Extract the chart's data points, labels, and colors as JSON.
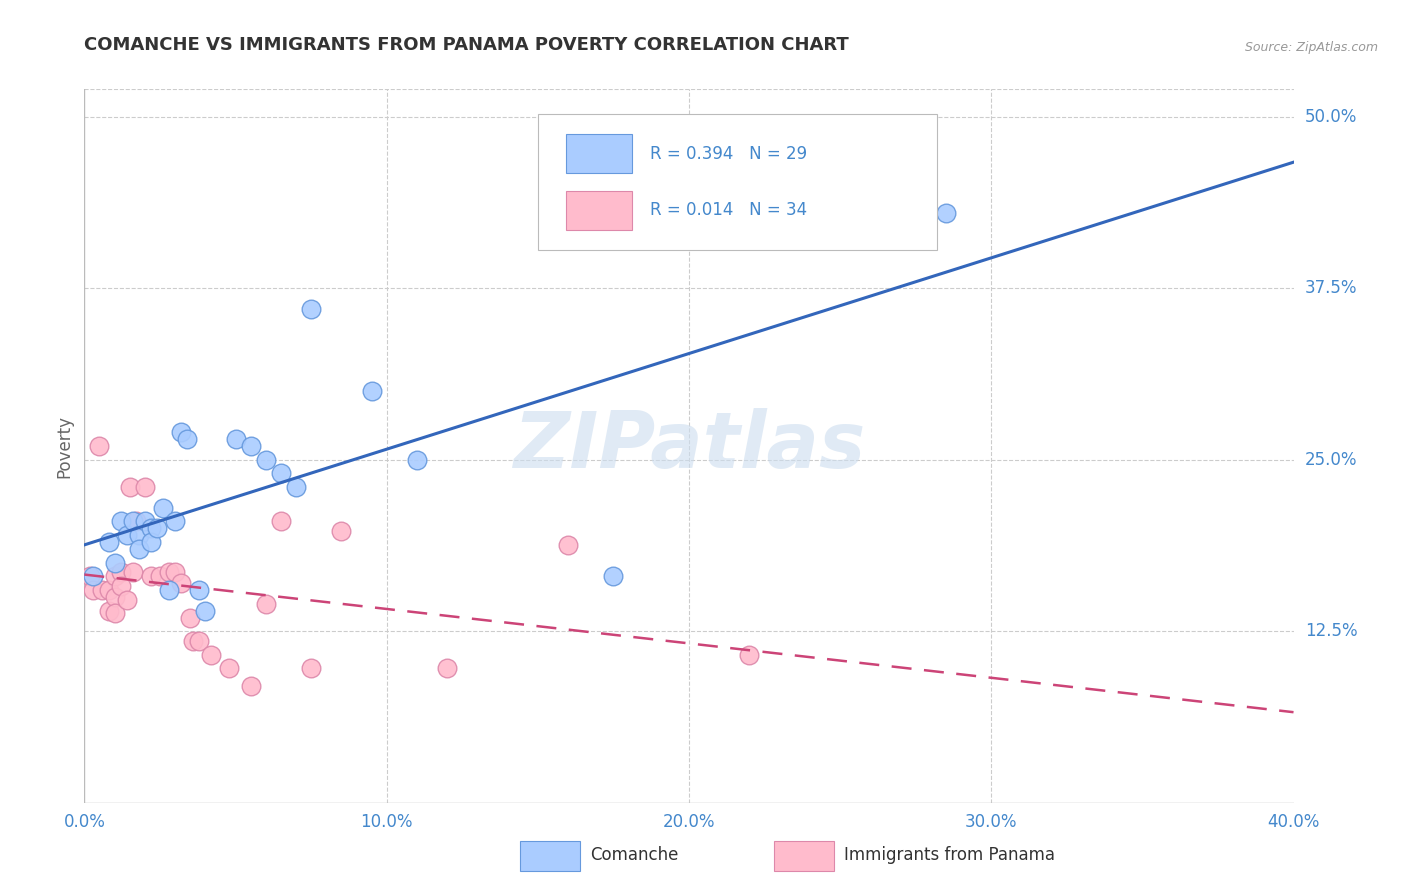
{
  "title": "COMANCHE VS IMMIGRANTS FROM PANAMA POVERTY CORRELATION CHART",
  "source": "Source: ZipAtlas.com",
  "ylabel_label": "Poverty",
  "xlim": [
    0.0,
    0.4
  ],
  "ylim": [
    0.0,
    0.52
  ],
  "xticks": [
    0.0,
    0.1,
    0.2,
    0.3,
    0.4
  ],
  "xtick_labels": [
    "0.0%",
    "10.0%",
    "20.0%",
    "30.0%",
    "40.0%"
  ],
  "yticks": [
    0.125,
    0.25,
    0.375,
    0.5
  ],
  "ytick_labels": [
    "12.5%",
    "25.0%",
    "37.5%",
    "50.0%"
  ],
  "series1_name": "Comanche",
  "series1_color": "#aaccff",
  "series1_edge_color": "#6699dd",
  "series1_R": "0.394",
  "series1_N": "29",
  "series2_name": "Immigrants from Panama",
  "series2_color": "#ffbbcc",
  "series2_edge_color": "#dd88aa",
  "series2_R": "0.014",
  "series2_N": "34",
  "series1_x": [
    0.003,
    0.008,
    0.01,
    0.012,
    0.014,
    0.016,
    0.018,
    0.018,
    0.02,
    0.022,
    0.022,
    0.024,
    0.026,
    0.028,
    0.03,
    0.032,
    0.034,
    0.038,
    0.04,
    0.05,
    0.055,
    0.06,
    0.065,
    0.07,
    0.075,
    0.095,
    0.11,
    0.175,
    0.285
  ],
  "series1_y": [
    0.165,
    0.19,
    0.175,
    0.205,
    0.195,
    0.205,
    0.195,
    0.185,
    0.205,
    0.2,
    0.19,
    0.2,
    0.215,
    0.155,
    0.205,
    0.27,
    0.265,
    0.155,
    0.14,
    0.265,
    0.26,
    0.25,
    0.24,
    0.23,
    0.36,
    0.3,
    0.25,
    0.165,
    0.43
  ],
  "series2_x": [
    0.002,
    0.003,
    0.005,
    0.006,
    0.008,
    0.008,
    0.01,
    0.01,
    0.01,
    0.012,
    0.012,
    0.014,
    0.015,
    0.016,
    0.017,
    0.02,
    0.022,
    0.025,
    0.028,
    0.03,
    0.032,
    0.035,
    0.036,
    0.038,
    0.042,
    0.048,
    0.055,
    0.06,
    0.065,
    0.075,
    0.085,
    0.12,
    0.16,
    0.22
  ],
  "series2_y": [
    0.165,
    0.155,
    0.26,
    0.155,
    0.155,
    0.14,
    0.165,
    0.15,
    0.138,
    0.168,
    0.158,
    0.148,
    0.23,
    0.168,
    0.205,
    0.23,
    0.165,
    0.165,
    0.168,
    0.168,
    0.16,
    0.135,
    0.118,
    0.118,
    0.108,
    0.098,
    0.085,
    0.145,
    0.205,
    0.098,
    0.198,
    0.098,
    0.188,
    0.108
  ],
  "trendline1_color": "#3366bb",
  "trendline2_color": "#cc4477",
  "trendline2_dashed": true,
  "watermark_text": "ZIPatlas",
  "watermark_color": "#ccddef",
  "background_color": "#ffffff",
  "grid_color": "#cccccc",
  "top_border_color": "#cccccc",
  "axis_color": "#aaaaaa"
}
